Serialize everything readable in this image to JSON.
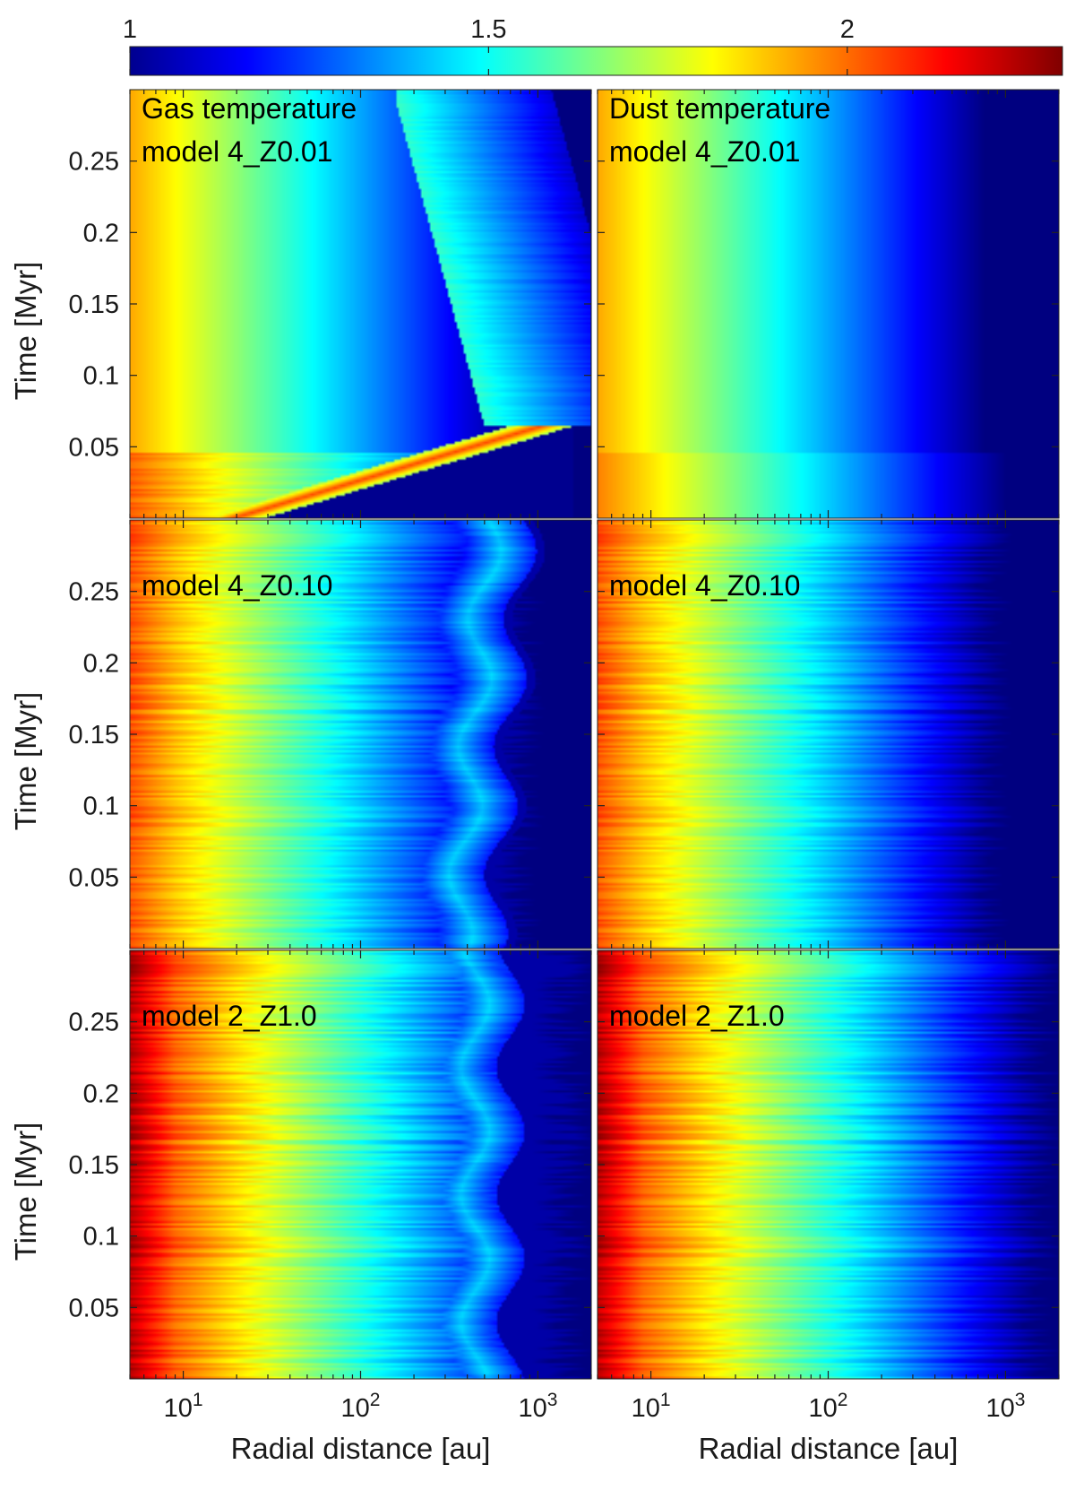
{
  "chart_data": {
    "type": "heatmap",
    "colorbar": {
      "ticks": [
        1,
        1.5,
        2
      ],
      "range": [
        1,
        2.3
      ],
      "colormap": "jet",
      "orientation": "horizontal",
      "placement": "top"
    },
    "x_axis": {
      "label": "Radial distance [au]",
      "scale": "log",
      "range_au": [
        5,
        2000
      ],
      "major_tick_labels": [
        {
          "value": 10,
          "base": "10",
          "exp": "1"
        },
        {
          "value": 100,
          "base": "10",
          "exp": "2"
        },
        {
          "value": 1000,
          "base": "10",
          "exp": "3"
        }
      ]
    },
    "y_axis": {
      "label": "Time [Myr]",
      "range": [
        0,
        0.3
      ],
      "tick_labels": [
        "0.05",
        "0.1",
        "0.15",
        "0.2",
        "0.25"
      ]
    },
    "panels": [
      {
        "row": 0,
        "col": 0,
        "labels": [
          "Gas temperature",
          "model 4_Z0.01"
        ],
        "quantity": "gas"
      },
      {
        "row": 0,
        "col": 1,
        "labels": [
          "Dust temperature",
          "model 4_Z0.01"
        ],
        "quantity": "dust"
      },
      {
        "row": 1,
        "col": 0,
        "labels": [
          "model 4_Z0.10"
        ],
        "quantity": "gas"
      },
      {
        "row": 1,
        "col": 1,
        "labels": [
          "model 4_Z0.10"
        ],
        "quantity": "dust"
      },
      {
        "row": 2,
        "col": 0,
        "labels": [
          "model 2_Z1.0"
        ],
        "quantity": "gas"
      },
      {
        "row": 2,
        "col": 1,
        "labels": [
          "model 2_Z1.0"
        ],
        "quantity": "dust"
      }
    ]
  }
}
